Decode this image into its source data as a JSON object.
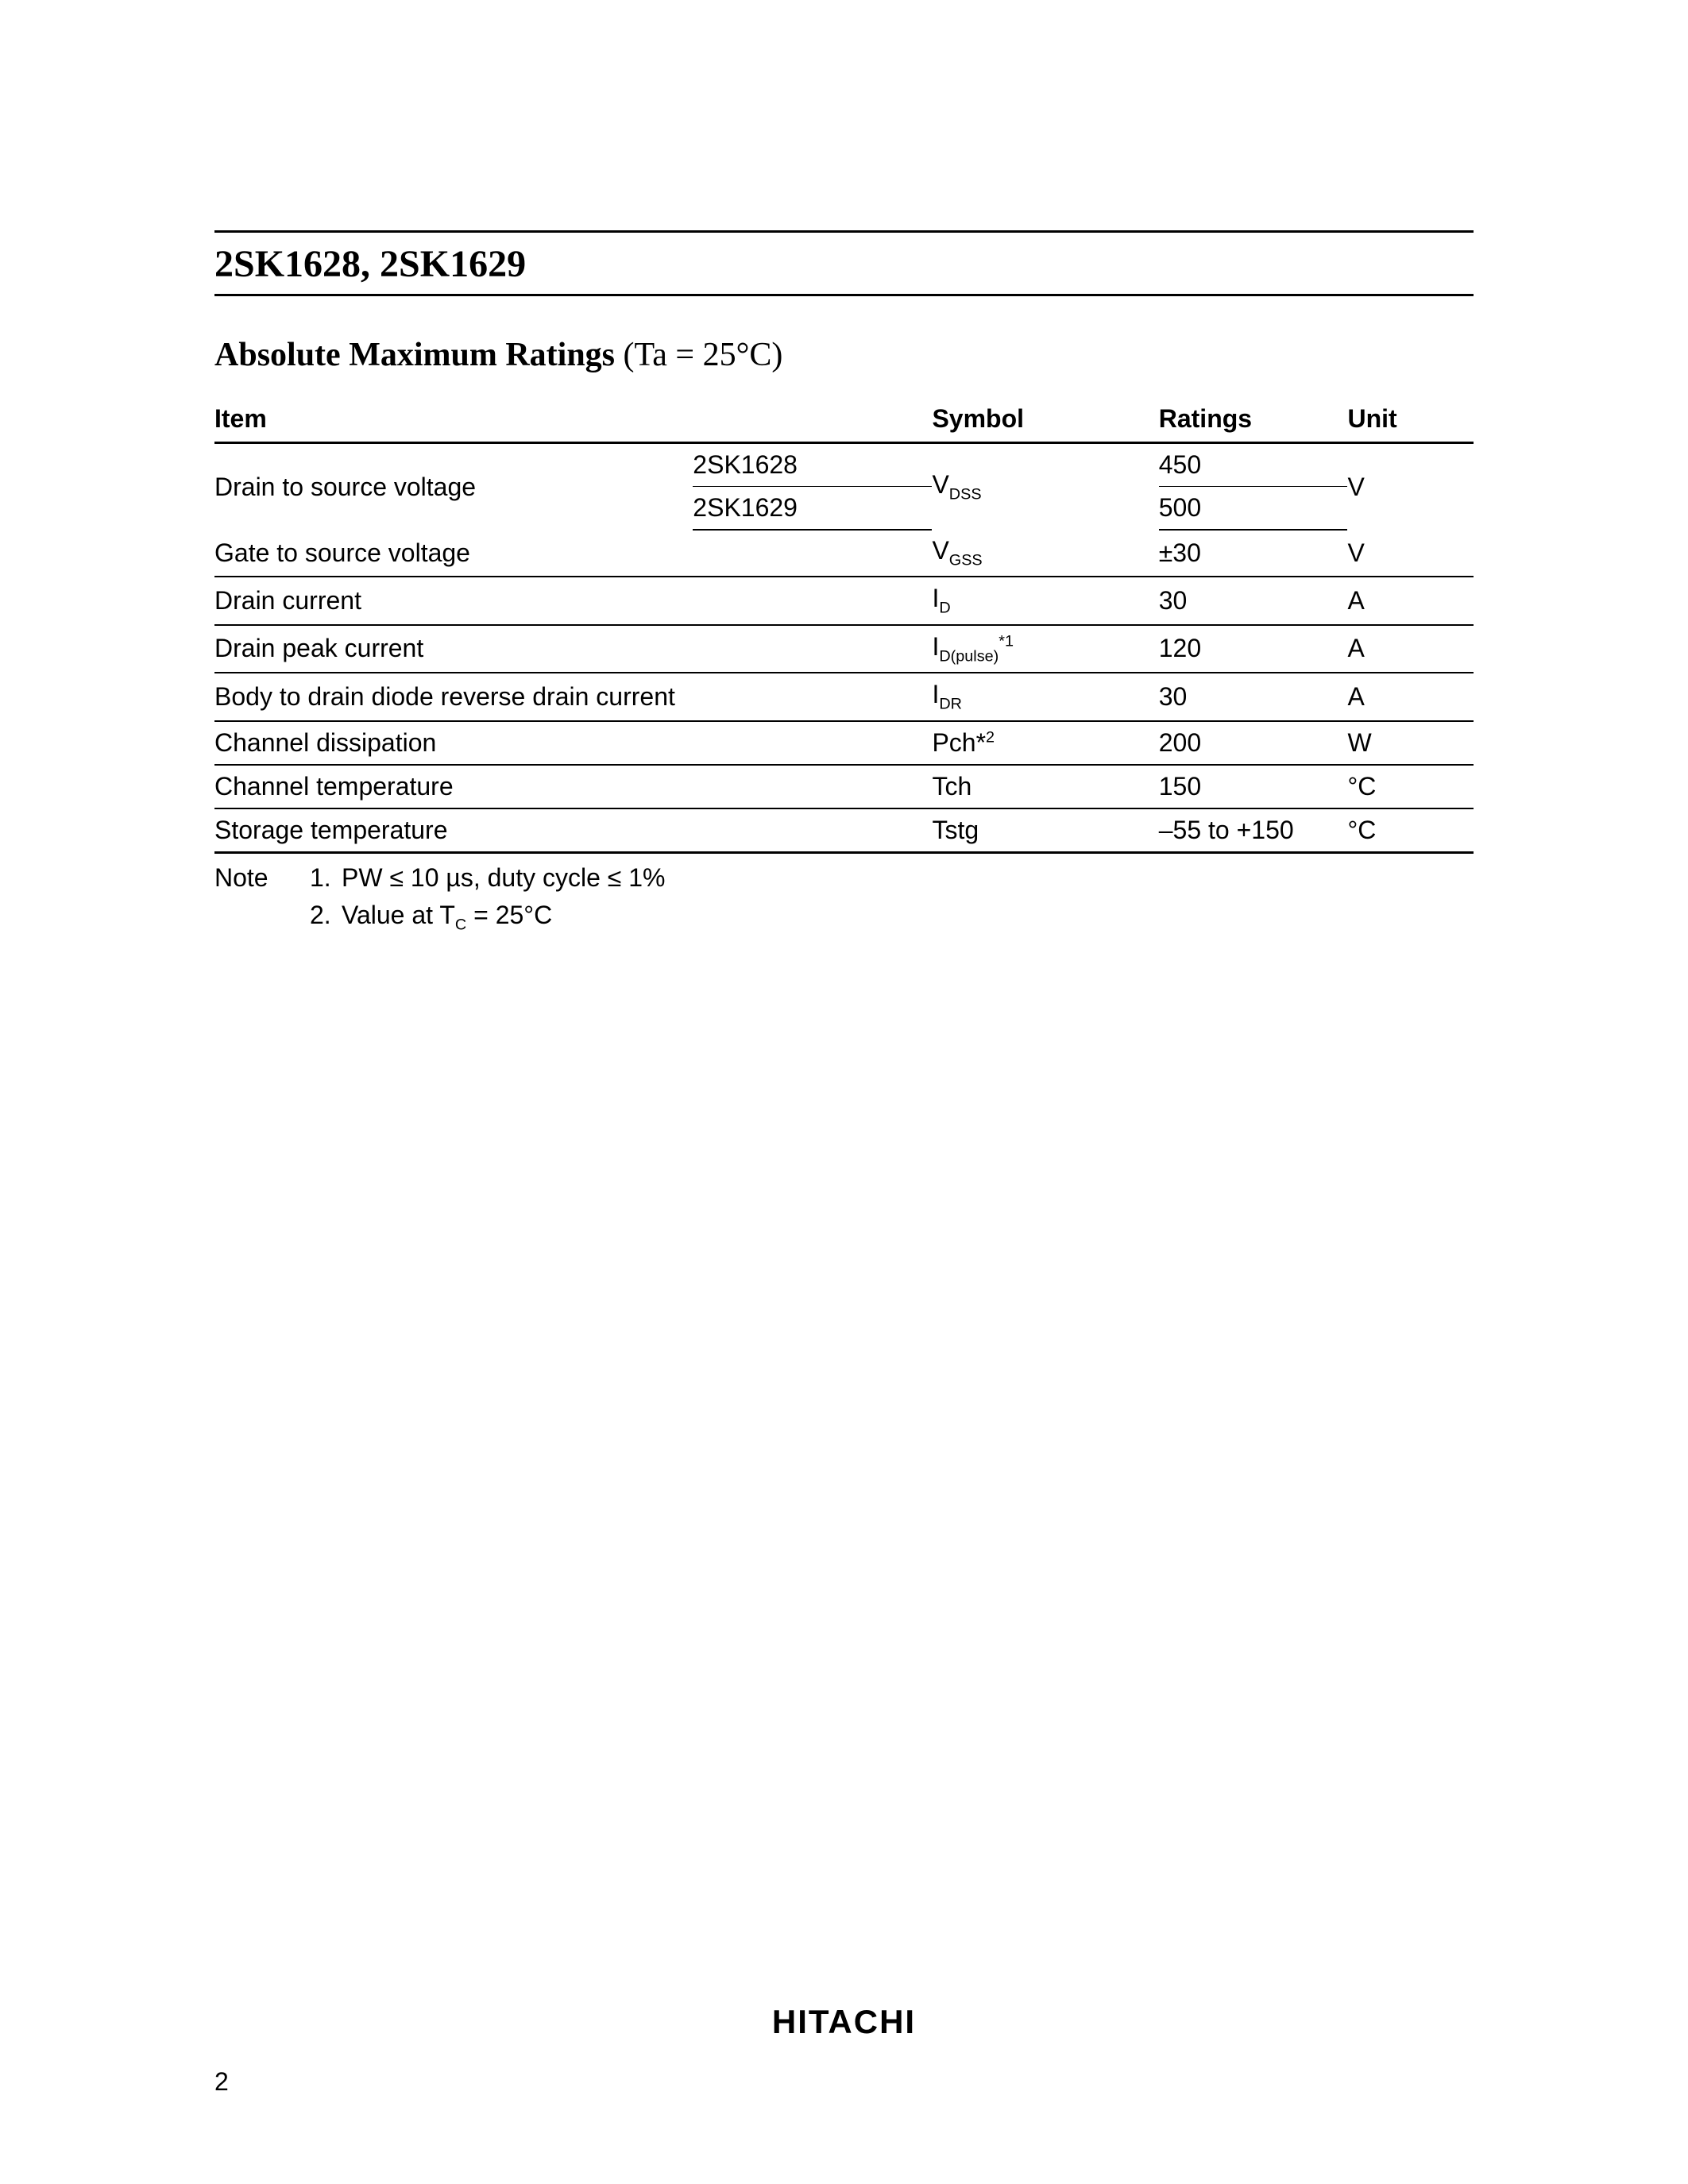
{
  "header": {
    "title": "2SK1628, 2SK1629"
  },
  "section": {
    "title_bold": "Absolute Maximum Ratings",
    "title_cond": " (Ta = 25°C)"
  },
  "table": {
    "columns": {
      "item": "Item",
      "symbol": "Symbol",
      "ratings": "Ratings",
      "unit": "Unit"
    },
    "rows": {
      "r1": {
        "item": "Drain to source voltage",
        "model1": "2SK1628",
        "model2": "2SK1629",
        "symbol_base": "V",
        "symbol_sub": "DSS",
        "rating1": "450",
        "rating2": "500",
        "unit": "V"
      },
      "r2": {
        "item": "Gate to source voltage",
        "symbol_base": "V",
        "symbol_sub": "GSS",
        "rating": "±30",
        "unit": "V"
      },
      "r3": {
        "item": "Drain current",
        "symbol_base": "I",
        "symbol_sub": "D",
        "rating": "30",
        "unit": "A"
      },
      "r4": {
        "item": "Drain peak current",
        "symbol_base": "I",
        "symbol_sub": "D(pulse)",
        "symbol_sup": "*1",
        "rating": "120",
        "unit": "A"
      },
      "r5": {
        "item": "Body to drain diode reverse drain current",
        "symbol_base": "I",
        "symbol_sub": "DR",
        "rating": "30",
        "unit": "A"
      },
      "r6": {
        "item": "Channel dissipation",
        "symbol": "Pch*",
        "symbol_sup": "2",
        "rating": "200",
        "unit": "W"
      },
      "r7": {
        "item": "Channel temperature",
        "symbol": "Tch",
        "rating": "150",
        "unit": "°C"
      },
      "r8": {
        "item": "Storage temperature",
        "symbol": "Tstg",
        "rating": "–55 to +150",
        "unit": "°C"
      }
    }
  },
  "notes": {
    "label": "Note",
    "n1_num": "1.",
    "n1_text": "PW ≤ 10 µs, duty cycle ≤ 1%",
    "n2_num": "2.",
    "n2_text_a": "Value at T",
    "n2_text_sub": "C",
    "n2_text_b": " =  25°C"
  },
  "footer": {
    "logo": "HITACHI",
    "page": "2"
  }
}
